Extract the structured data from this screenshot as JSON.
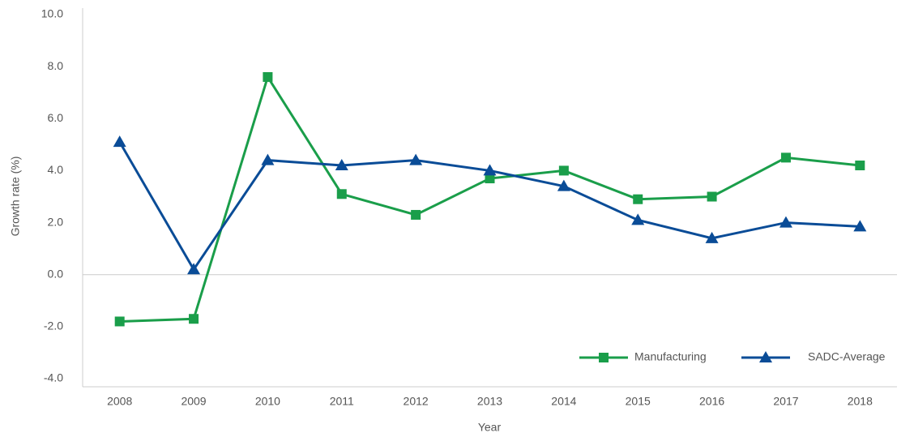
{
  "chart_data": {
    "type": "line",
    "y_label": "Growth rate (%)",
    "x_label": "Year",
    "categories": [
      "2008",
      "2009",
      "2010",
      "2011",
      "2012",
      "2013",
      "2014",
      "2015",
      "2016",
      "2017",
      "2018"
    ],
    "series": [
      {
        "name": "Manufacturing",
        "color": "#1a9e4a",
        "marker": "square",
        "values": [
          -1.8,
          -1.7,
          7.6,
          3.1,
          2.3,
          3.7,
          4.0,
          2.9,
          3.0,
          4.5,
          4.2
        ]
      },
      {
        "name": "SADC-Average",
        "color": "#0a4c97",
        "marker": "triangle",
        "values": [
          5.1,
          0.2,
          4.4,
          4.2,
          4.4,
          4.0,
          3.4,
          2.1,
          1.4,
          2.0,
          1.85
        ]
      }
    ],
    "ylim": [
      -4,
      10
    ],
    "yticks": [
      {
        "value": -4,
        "label": "-4.0"
      },
      {
        "value": -2,
        "label": "-2.0"
      },
      {
        "value": 0,
        "label": "0.0"
      },
      {
        "value": 2,
        "label": "2.0"
      },
      {
        "value": 4,
        "label": "4.0"
      },
      {
        "value": 6,
        "label": "6.0"
      },
      {
        "value": 8,
        "label": "8.0"
      },
      {
        "value": 10,
        "label": "10.0"
      }
    ],
    "legend": "lower right"
  }
}
